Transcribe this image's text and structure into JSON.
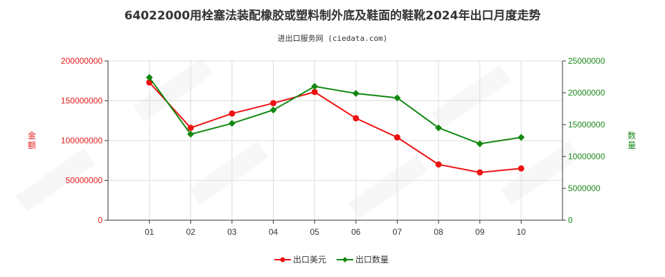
{
  "title": "64022000用栓塞法装配橡胶或塑料制外底及鞋面的鞋靴2024年出口月度走势",
  "subtitle": "进出口服务网 (ciedata.com)",
  "chart_data": {
    "type": "line",
    "categories": [
      "01",
      "02",
      "03",
      "04",
      "05",
      "06",
      "07",
      "08",
      "09",
      "10"
    ],
    "left_axis": {
      "label": "金额",
      "ylim": [
        0,
        200000000
      ],
      "ticks": [
        "0",
        "50000000",
        "100000000",
        "150000000",
        "200000000"
      ],
      "color": "#e31a1c"
    },
    "right_axis": {
      "label": "数量",
      "ylim": [
        0,
        25000000
      ],
      "ticks": [
        "0",
        "5000000",
        "10000000",
        "15000000",
        "20000000",
        "25000000"
      ],
      "color": "#1a8a1a"
    },
    "series": [
      {
        "name": "出口美元",
        "axis": "left",
        "color": "#ee1111",
        "marker": "circle",
        "values": [
          173000000,
          116000000,
          134000000,
          147000000,
          161000000,
          128000000,
          104000000,
          70000000,
          60000000,
          65000000
        ]
      },
      {
        "name": "出口数量",
        "axis": "right",
        "color": "#118811",
        "marker": "diamond",
        "values": [
          22400000,
          13500000,
          15200000,
          17300000,
          21000000,
          19900000,
          19200000,
          14500000,
          12000000,
          13000000
        ]
      }
    ],
    "grid": true,
    "legend": "bottom-center"
  }
}
